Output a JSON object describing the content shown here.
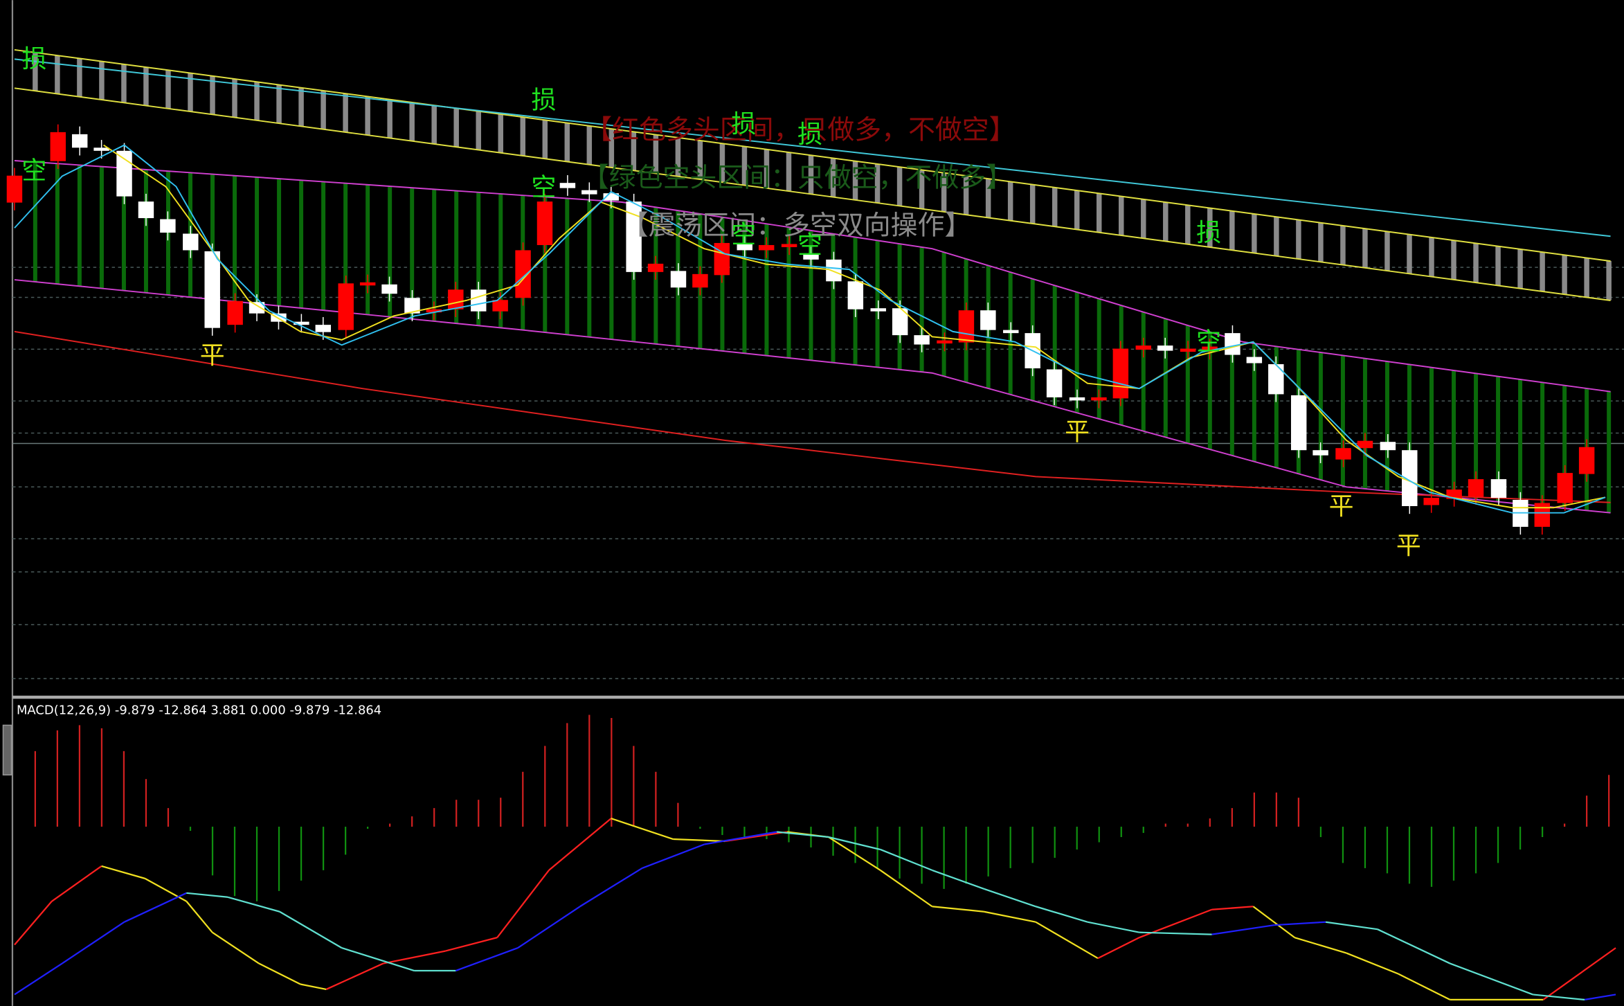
{
  "legend": [
    "【红色多头区间，只做多，不做空】",
    "【绿色空头区间：只做空，不做多】",
    "【震荡区间：多空双向操作】"
  ],
  "markers": [
    "损",
    "损",
    "损",
    "损",
    "损",
    "空",
    "空",
    "空",
    "空",
    "空",
    "平",
    "平",
    "平",
    "平"
  ],
  "macd": {
    "label": "MACD(12,26,9) -9.879 -12.864 3.881 0.000 -9.879 -12.864"
  }
}
